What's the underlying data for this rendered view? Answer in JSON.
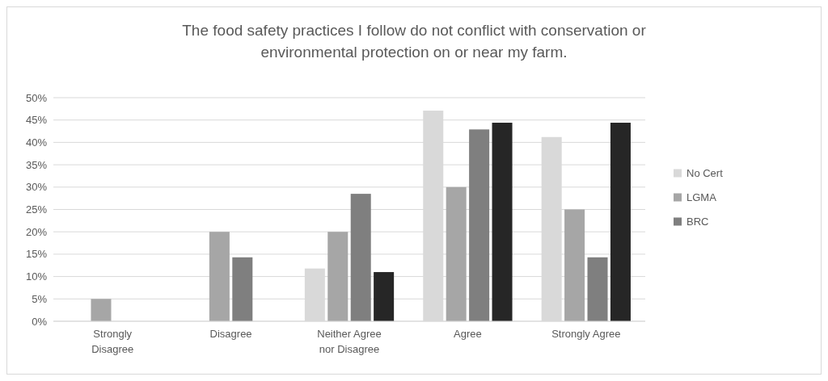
{
  "chart_data": {
    "type": "bar",
    "title": "The food safety practices I follow do not conflict with conservation or environmental protection on or near my farm.",
    "categories": [
      "Strongly Disagree",
      "Disagree",
      "Neither Agree nor Disagree",
      "Agree",
      "Strongly Agree"
    ],
    "series": [
      {
        "name": "No Cert",
        "color": "#d9d9d9",
        "values": [
          0,
          0,
          11.8,
          47.1,
          41.2
        ]
      },
      {
        "name": "LGMA",
        "color": "#a6a6a6",
        "values": [
          5,
          20,
          20,
          30,
          25
        ]
      },
      {
        "name": "BRC",
        "color": "#7f7f7f",
        "values": [
          0,
          14.3,
          28.5,
          42.9,
          14.3
        ]
      },
      {
        "color": "#262626",
        "values": [
          0,
          0,
          11,
          44.4,
          44.4
        ]
      }
    ],
    "ylim": [
      0,
      50
    ],
    "yticks": [
      {
        "value": 0,
        "label": "0%"
      },
      {
        "value": 5,
        "label": "5%"
      },
      {
        "value": 10,
        "label": "10%"
      },
      {
        "value": 15,
        "label": "15%"
      },
      {
        "value": 20,
        "label": "20%"
      },
      {
        "value": 25,
        "label": "25%"
      },
      {
        "value": 30,
        "label": "30%"
      },
      {
        "value": 35,
        "label": "35%"
      },
      {
        "value": 40,
        "label": "40%"
      },
      {
        "value": 45,
        "label": "45%"
      },
      {
        "value": 50,
        "label": "50%"
      }
    ],
    "grid": "y",
    "legend": "right"
  }
}
